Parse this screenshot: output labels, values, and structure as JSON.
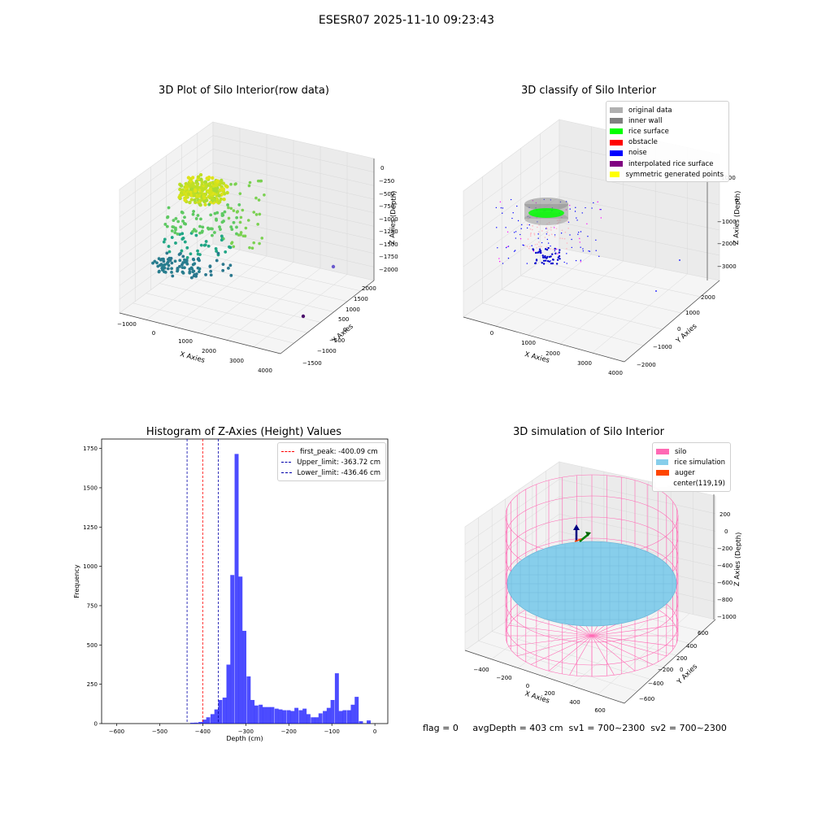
{
  "suptitle": "ESESR07 2025-11-10 09:23:43",
  "panels": {
    "raw": {
      "title": "3D Plot of Silo Interior(row data)",
      "x_ticks": [
        "−1000",
        "0",
        "1000",
        "2000",
        "3000",
        "4000"
      ],
      "y_ticks": [
        "−1500",
        "−1000",
        "−500",
        "0",
        "500",
        "1000",
        "1500",
        "2000"
      ],
      "z_ticks": [
        "0",
        "−250",
        "−500",
        "−750",
        "−1000",
        "−1250",
        "−1500",
        "−1750",
        "−2000"
      ],
      "xlabel": "X Axies",
      "ylabel": "Y Axies",
      "zlabel": "Z Axies (Depth)"
    },
    "classify": {
      "title": "3D classify of Silo Interior",
      "x_ticks": [
        "0",
        "1000",
        "2000",
        "3000",
        "4000"
      ],
      "y_ticks": [
        "−2000",
        "−1000",
        "0",
        "1000",
        "2000"
      ],
      "z_ticks": [
        "1000",
        "0",
        "−1000",
        "−2000",
        "−3000"
      ],
      "xlabel": "X Axies",
      "ylabel": "Y Axies",
      "zlabel": "Z Axies (Depth)",
      "legend": [
        {
          "label": "original data",
          "color": "#b0b0b0"
        },
        {
          "label": "inner wall",
          "color": "#808080"
        },
        {
          "label": "rice surface",
          "color": "#00ff00"
        },
        {
          "label": "obstacle",
          "color": "#ff0000"
        },
        {
          "label": "noise",
          "color": "#0000ff"
        },
        {
          "label": "interpolated rice surface",
          "color": "#800080"
        },
        {
          "label": "symmetric generated points",
          "color": "#ffff00"
        }
      ]
    },
    "simulation": {
      "title": "3D simulation of Silo Interior",
      "x_ticks": [
        "−400",
        "−200",
        "0",
        "200",
        "400",
        "600"
      ],
      "y_ticks": [
        "−600",
        "−400",
        "−200",
        "0",
        "200",
        "400",
        "600"
      ],
      "z_ticks": [
        "200",
        "0",
        "−200",
        "−400",
        "−600",
        "−800",
        "−1000"
      ],
      "xlabel": "X Axies",
      "ylabel": "Y Axies",
      "zlabel": "Z Axies (Depth)",
      "legend": [
        {
          "label": "silo",
          "color": "#ff69b4"
        },
        {
          "label": "rice simulation",
          "color": "#87ceeb"
        },
        {
          "label": "auger",
          "color": "#ff4500"
        },
        {
          "label": "center(119,19)",
          "color": "#ffffff"
        }
      ]
    }
  },
  "chart_data": {
    "type": "bar",
    "title": "Histogram of Z-Axies (Height) Values",
    "xlabel": "Depth (cm)",
    "ylabel": "Frequency",
    "xlim": [
      -635,
      30
    ],
    "ylim": [
      0,
      1810
    ],
    "x_ticks": [
      -600,
      -500,
      -400,
      -300,
      -200,
      -100,
      0
    ],
    "y_ticks": [
      0,
      250,
      500,
      750,
      1000,
      1250,
      1500,
      1750
    ],
    "bin_width": 9.3,
    "bins": [
      [
        -524,
        5
      ],
      [
        -515,
        6
      ],
      [
        -505,
        10
      ],
      [
        -496,
        25
      ],
      [
        -487,
        40
      ],
      [
        -477,
        60
      ],
      [
        -468,
        90
      ],
      [
        -459,
        150
      ],
      [
        -449,
        165
      ],
      [
        -440,
        375
      ],
      [
        -431,
        945
      ],
      [
        -421,
        1715
      ],
      [
        -412,
        935
      ],
      [
        -403,
        590
      ],
      [
        -393,
        300
      ],
      [
        -384,
        150
      ],
      [
        -375,
        115
      ],
      [
        -365,
        120
      ],
      [
        -356,
        105
      ],
      [
        -347,
        105
      ],
      [
        -338,
        105
      ],
      [
        -328,
        95
      ],
      [
        -319,
        90
      ],
      [
        -310,
        85
      ],
      [
        -300,
        85
      ],
      [
        -291,
        80
      ],
      [
        -282,
        100
      ],
      [
        -272,
        85
      ],
      [
        -263,
        95
      ],
      [
        -254,
        60
      ],
      [
        -244,
        40
      ],
      [
        -235,
        40
      ],
      [
        -226,
        65
      ],
      [
        -216,
        80
      ],
      [
        -207,
        100
      ],
      [
        -198,
        150
      ],
      [
        -188,
        320
      ],
      [
        -179,
        80
      ],
      [
        -170,
        85
      ],
      [
        -160,
        85
      ],
      [
        -151,
        120
      ],
      [
        -142,
        170
      ],
      [
        -132,
        15
      ],
      [
        -114,
        20
      ]
    ],
    "bin_shift": 95,
    "lines": [
      {
        "name": "first_peak: -400.09 cm",
        "x": -400.09,
        "color": "#ff0000"
      },
      {
        "name": "Upper_limit: -363.72 cm",
        "x": -363.72,
        "color": "#0000aa"
      },
      {
        "name": "Lower_limit: -436.46 cm",
        "x": -436.46,
        "color": "#0000aa"
      }
    ],
    "bar_color": "#0000ff"
  },
  "footer": "flag = 0     avgDepth = 403 cm  sv1 = 700~2300  sv2 = 700~2300"
}
